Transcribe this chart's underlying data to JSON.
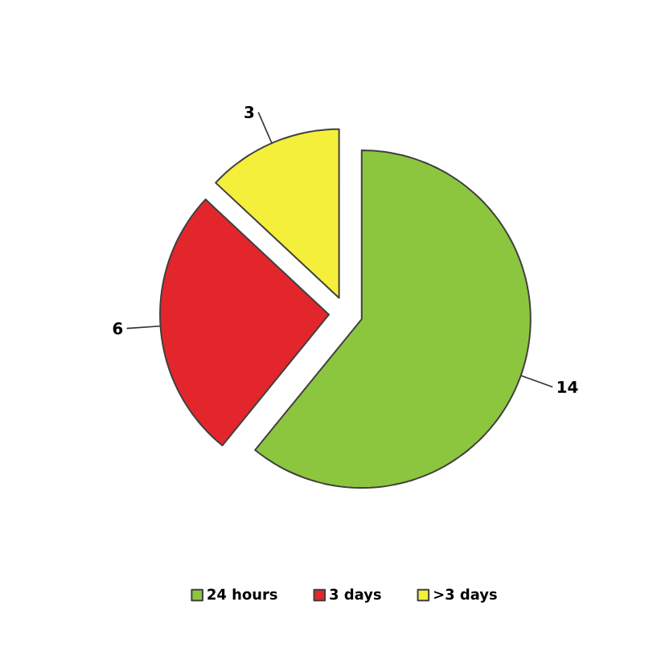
{
  "chart_data": {
    "type": "pie",
    "categories": [
      "24 hours",
      "3 days",
      ">3 days"
    ],
    "values": [
      14,
      6,
      3
    ],
    "colors": [
      "#8cc63e",
      "#e3262b",
      "#f4ef3a"
    ],
    "data_labels": true,
    "legend": "bottom"
  }
}
